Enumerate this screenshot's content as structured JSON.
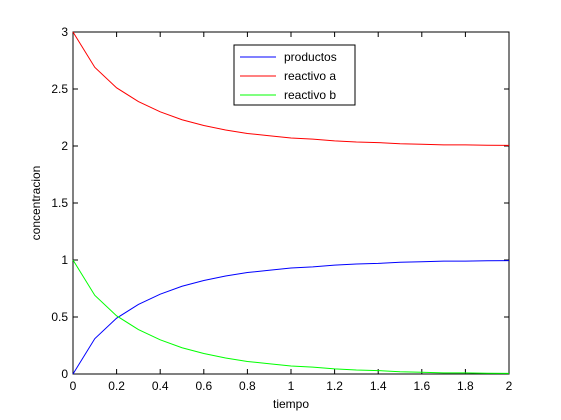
{
  "chart_data": {
    "type": "line",
    "xlabel": "tiempo",
    "ylabel": "concentracion",
    "xlim": [
      0,
      2
    ],
    "ylim": [
      0,
      3
    ],
    "xticks": [
      "0",
      "0.2",
      "0.4",
      "0.6",
      "0.8",
      "1",
      "1.2",
      "1.4",
      "1.6",
      "1.8",
      "2"
    ],
    "yticks": [
      "0",
      "0.5",
      "1",
      "1.5",
      "2",
      "2.5",
      "3"
    ],
    "grid": false,
    "legend_position": "top-center",
    "x": [
      0,
      0.1,
      0.2,
      0.3,
      0.4,
      0.5,
      0.6,
      0.7,
      0.8,
      0.9,
      1.0,
      1.1,
      1.2,
      1.3,
      1.4,
      1.5,
      1.6,
      1.7,
      1.8,
      1.9,
      2.0
    ],
    "series": [
      {
        "name": "productos",
        "color": "#0000ff",
        "values": [
          0,
          0.31,
          0.49,
          0.61,
          0.7,
          0.77,
          0.82,
          0.86,
          0.89,
          0.91,
          0.93,
          0.94,
          0.955,
          0.965,
          0.97,
          0.98,
          0.985,
          0.99,
          0.99,
          0.993,
          0.995
        ]
      },
      {
        "name": "reactivo a",
        "color": "#ff0000",
        "values": [
          3.0,
          2.69,
          2.51,
          2.39,
          2.3,
          2.23,
          2.18,
          2.14,
          2.11,
          2.09,
          2.07,
          2.06,
          2.045,
          2.035,
          2.03,
          2.02,
          2.015,
          2.01,
          2.01,
          2.007,
          2.005
        ]
      },
      {
        "name": "reactivo b",
        "color": "#00ff00",
        "values": [
          1.0,
          0.69,
          0.51,
          0.39,
          0.3,
          0.23,
          0.18,
          0.14,
          0.11,
          0.09,
          0.07,
          0.06,
          0.045,
          0.035,
          0.03,
          0.02,
          0.015,
          0.01,
          0.01,
          0.007,
          0.005
        ]
      }
    ]
  }
}
